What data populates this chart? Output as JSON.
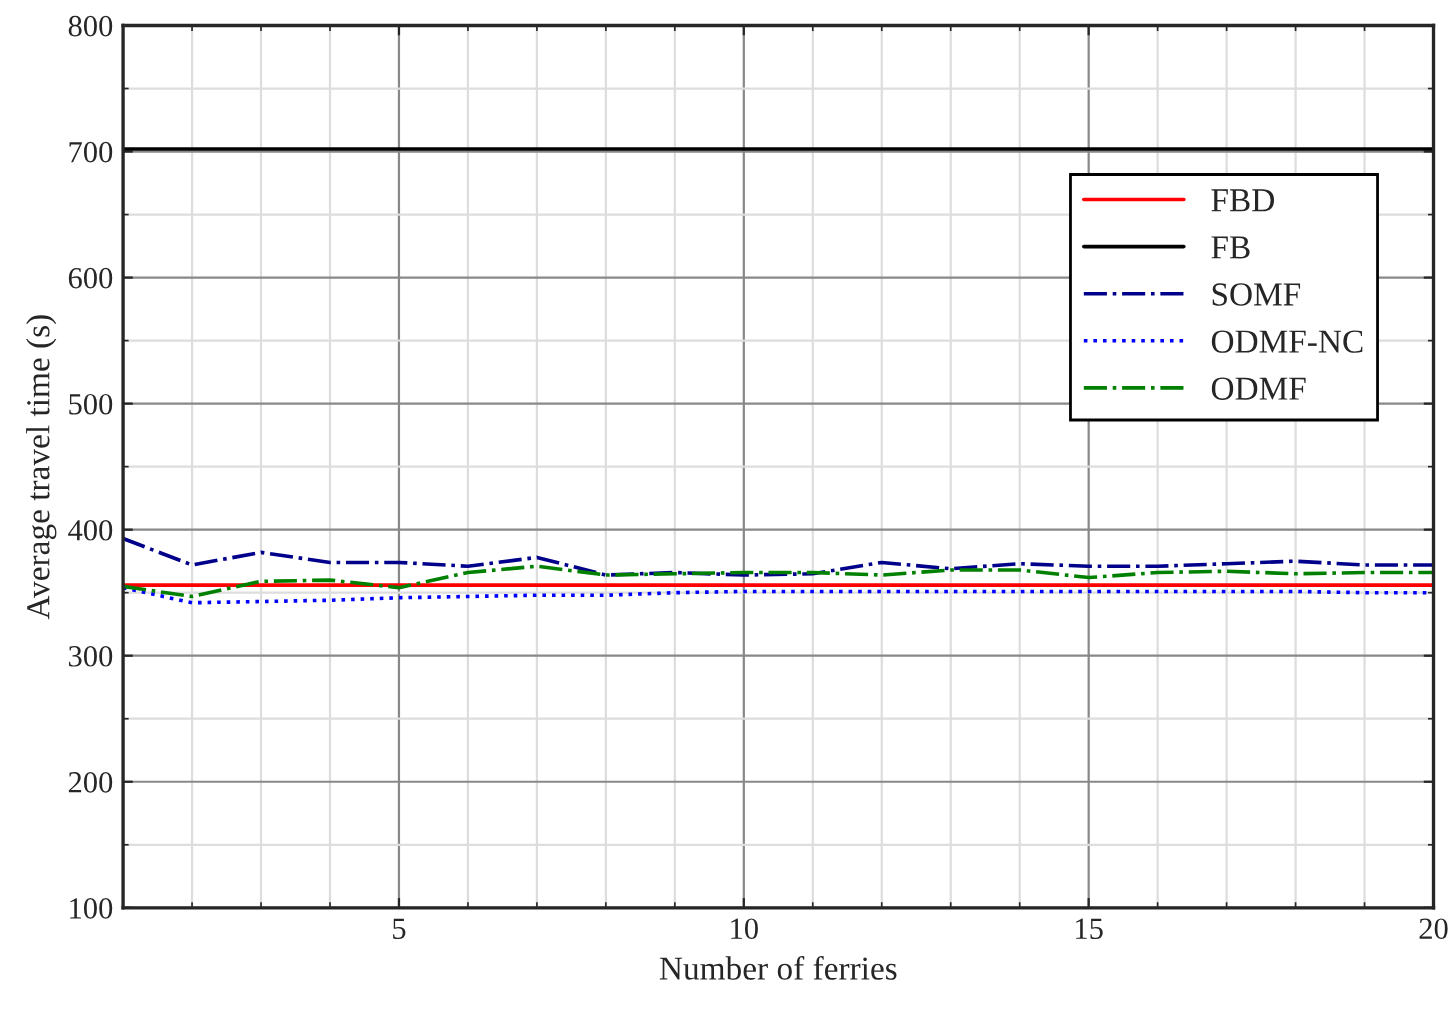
{
  "chart_data": {
    "type": "line",
    "xlabel": "Number of ferries",
    "ylabel": "Average travel time (s)",
    "x": [
      1,
      2,
      3,
      4,
      5,
      6,
      7,
      8,
      9,
      10,
      11,
      12,
      13,
      14,
      15,
      16,
      17,
      18,
      19,
      20
    ],
    "xlim": [
      1,
      20
    ],
    "xticks": [
      5,
      10,
      15,
      20
    ],
    "ylim": [
      100,
      800
    ],
    "yticks": [
      100,
      200,
      300,
      400,
      500,
      600,
      700,
      800
    ],
    "grid": true,
    "legend": "top right",
    "series": [
      {
        "name": "FBD",
        "color": "#ff0000",
        "line_style": "solid",
        "values": [
          356,
          356,
          356,
          356,
          356,
          356,
          356,
          356,
          356,
          356,
          356,
          356,
          356,
          356,
          356,
          356,
          356,
          356,
          356,
          356
        ]
      },
      {
        "name": "FB",
        "color": "#000000",
        "line_style": "solid",
        "values": [
          702,
          702,
          702,
          702,
          702,
          702,
          702,
          702,
          702,
          702,
          702,
          702,
          702,
          702,
          702,
          702,
          702,
          702,
          702,
          702
        ]
      },
      {
        "name": "SOMF",
        "color": "#00008b",
        "line_style": "dashdot",
        "values": [
          393,
          372,
          382,
          374,
          374,
          371,
          378,
          364,
          366,
          364,
          365,
          374,
          369,
          373,
          371,
          371,
          373,
          375,
          372,
          372
        ]
      },
      {
        "name": "ODMF-NC",
        "color": "#0000ff",
        "line_style": "dotted",
        "values": [
          354,
          342,
          343,
          344,
          346,
          347,
          348,
          348,
          350,
          351,
          351,
          351,
          351,
          351,
          351,
          351,
          351,
          351,
          350,
          350
        ]
      },
      {
        "name": "ODMF",
        "color": "#008000",
        "line_style": "dashdot",
        "values": [
          355,
          347,
          359,
          360,
          354,
          366,
          371,
          364,
          365,
          366,
          366,
          364,
          368,
          368,
          362,
          366,
          367,
          365,
          366,
          366
        ]
      }
    ]
  }
}
